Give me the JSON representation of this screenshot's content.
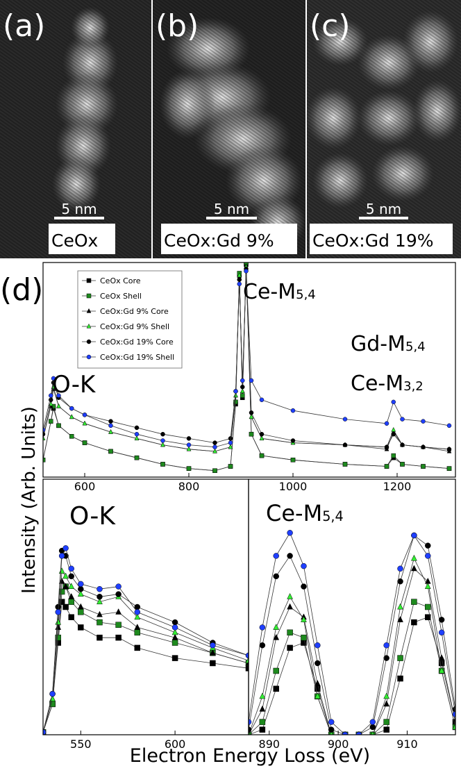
{
  "panels": [
    {
      "label": "(a)",
      "scale_bar": "5 nm",
      "material": "CeOx"
    },
    {
      "label": "(b)",
      "scale_bar": "5 nm",
      "material": "CeOx:Gd 9%"
    },
    {
      "label": "(c)",
      "scale_bar": "5 nm",
      "material": "CeOx:Gd 19%"
    }
  ],
  "figure": {
    "y_axis_label": "Intensity (Arb. Units)",
    "x_axis_label": "Electron Energy Loss (eV)"
  },
  "chart_data": [
    {
      "type": "line",
      "label": "(d)",
      "legend": "upper left",
      "xlim": [
        520,
        1312
      ],
      "xticks": [
        600,
        800,
        1000,
        1200
      ],
      "ylim": [
        0,
        100
      ],
      "annotations": [
        {
          "text": "O-K"
        },
        {
          "text": "Ce-M",
          "sub": "5,4"
        },
        {
          "text": "Gd-M",
          "sub": "5,4"
        },
        {
          "text": "Ce-M",
          "sub": "3,2"
        }
      ],
      "x": [
        520,
        535,
        540,
        550,
        575,
        600,
        650,
        700,
        750,
        800,
        850,
        880,
        890,
        897,
        903,
        910,
        920,
        940,
        1000,
        1100,
        1180,
        1193,
        1210,
        1250,
        1300
      ],
      "series": [
        {
          "name": "CeOx Core",
          "color": "#000000",
          "marker": "square",
          "values": [
            8,
            26,
            32,
            24,
            19,
            16,
            12,
            9,
            6,
            4,
            3,
            5,
            34,
            94,
            37,
            99,
            20,
            10,
            8,
            6,
            5,
            9,
            6,
            5,
            4
          ]
        },
        {
          "name": "CeOx Shell",
          "color": "#1e8a1e",
          "marker": "square",
          "values": [
            8,
            26,
            33,
            24,
            19,
            16,
            12,
            9,
            6,
            4,
            3,
            5,
            35,
            95,
            38,
            100,
            20,
            10,
            8,
            6,
            5,
            10,
            6,
            5,
            4
          ]
        },
        {
          "name": "CeOx:Gd 9% Core",
          "color": "#000000",
          "marker": "triangle",
          "values": [
            18,
            33,
            41,
            33,
            28,
            25,
            21,
            18,
            15,
            13,
            12,
            14,
            38,
            93,
            40,
            97,
            28,
            18,
            16,
            15,
            13,
            21,
            15,
            14,
            12
          ]
        },
        {
          "name": "CeOx:Gd 9% Shell",
          "color": "#33ee33",
          "marker": "triangle",
          "values": [
            18,
            34,
            42,
            33,
            28,
            25,
            21,
            18,
            15,
            13,
            12,
            14,
            38,
            94,
            40,
            98,
            28,
            18,
            16,
            15,
            14,
            22,
            15,
            14,
            13
          ]
        },
        {
          "name": "CeOx:Gd 19% Core",
          "color": "#000000",
          "marker": "circle",
          "values": [
            20,
            36,
            44,
            37,
            32,
            29,
            26,
            23,
            20,
            18,
            16,
            18,
            40,
            92,
            42,
            97,
            30,
            20,
            17,
            15,
            14,
            20,
            15,
            14,
            13
          ]
        },
        {
          "name": "CeOx:Gd 19% Shell",
          "color": "#1f3fff",
          "marker": "circle",
          "values": [
            22,
            38,
            46,
            38,
            32,
            29,
            24,
            20,
            17,
            15,
            14,
            16,
            40,
            90,
            45,
            96,
            45,
            36,
            31,
            27,
            25,
            35,
            27,
            26,
            24
          ]
        }
      ]
    },
    {
      "type": "line",
      "xlim": [
        530,
        639
      ],
      "xticks": [
        550,
        600
      ],
      "ylim": [
        0,
        100
      ],
      "annotations": [
        {
          "text": "O-K"
        }
      ],
      "x": [
        530,
        535,
        538,
        540,
        542,
        545,
        550,
        560,
        570,
        580,
        600,
        620,
        639
      ],
      "series": [
        {
          "color": "#000000",
          "marker": "square",
          "values": [
            1,
            12,
            36,
            52,
            50,
            46,
            42,
            38,
            38,
            34,
            30,
            28,
            26
          ]
        },
        {
          "color": "#1e8a1e",
          "marker": "square",
          "values": [
            1,
            12,
            38,
            56,
            58,
            52,
            48,
            44,
            43,
            40,
            36,
            32,
            28
          ]
        },
        {
          "color": "#000000",
          "marker": "triangle",
          "values": [
            1,
            14,
            42,
            60,
            58,
            54,
            50,
            47,
            48,
            42,
            38,
            32,
            28
          ]
        },
        {
          "color": "#33ee33",
          "marker": "triangle",
          "values": [
            1,
            14,
            44,
            64,
            62,
            58,
            55,
            52,
            54,
            46,
            40,
            34,
            29
          ]
        },
        {
          "color": "#000000",
          "marker": "circle",
          "values": [
            1,
            16,
            50,
            72,
            70,
            62,
            57,
            54,
            55,
            50,
            44,
            36,
            31
          ]
        },
        {
          "color": "#1f3fff",
          "marker": "circle",
          "values": [
            1,
            16,
            48,
            70,
            73,
            65,
            59,
            57,
            58,
            48,
            42,
            35,
            31
          ]
        }
      ]
    },
    {
      "type": "line",
      "xlim": [
        887,
        917
      ],
      "xticks": [
        890,
        900,
        910
      ],
      "ylim": [
        0,
        100
      ],
      "annotations": [
        {
          "text": "Ce-M",
          "sub": "5,4"
        }
      ],
      "x": [
        887,
        889,
        891,
        893,
        895,
        897,
        899,
        901,
        903,
        905,
        907,
        909,
        911,
        913,
        915,
        917
      ],
      "series": [
        {
          "color": "#000000",
          "marker": "square",
          "values": [
            0,
            2,
            18,
            34,
            36,
            18,
            0,
            0,
            0,
            0,
            2,
            22,
            44,
            46,
            28,
            5
          ]
        },
        {
          "color": "#1e8a1e",
          "marker": "square",
          "values": [
            0,
            5,
            25,
            40,
            38,
            15,
            0,
            0,
            0,
            0,
            5,
            30,
            52,
            50,
            25,
            3
          ]
        },
        {
          "color": "#000000",
          "marker": "triangle",
          "values": [
            0,
            10,
            38,
            50,
            46,
            20,
            0,
            0,
            0,
            0,
            12,
            45,
            65,
            60,
            30,
            5
          ]
        },
        {
          "color": "#33ee33",
          "marker": "triangle",
          "values": [
            0,
            15,
            42,
            54,
            45,
            15,
            0,
            0,
            0,
            0,
            15,
            50,
            69,
            58,
            25,
            3
          ]
        },
        {
          "color": "#000000",
          "marker": "circle",
          "values": [
            2,
            35,
            62,
            70,
            58,
            28,
            2,
            0,
            0,
            3,
            30,
            60,
            78,
            74,
            45,
            10
          ]
        },
        {
          "color": "#1f3fff",
          "marker": "circle",
          "values": [
            5,
            42,
            70,
            79,
            66,
            35,
            5,
            0,
            0,
            5,
            35,
            65,
            78,
            70,
            40,
            8
          ]
        }
      ]
    }
  ]
}
